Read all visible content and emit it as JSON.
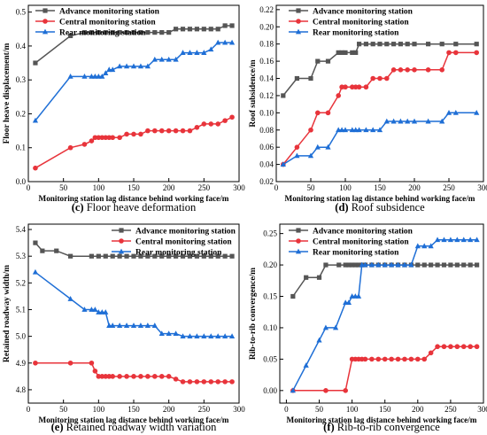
{
  "legend": {
    "advance": "Advance monitoring station",
    "central": "Central  monitoring station",
    "rear": "Rear monitoring station"
  },
  "colors": {
    "advance": "#555555",
    "central": "#e8343b",
    "rear": "#1f6fd6"
  },
  "chart_data": [
    {
      "id": "c",
      "type": "line",
      "caption_letter": "(c)",
      "caption_text": " Floor heave deformation",
      "xlabel": "Monitoring station lag distance behind working face/m",
      "ylabel": "Floor heave displacement/m",
      "xlim": [
        0,
        300
      ],
      "ylim": [
        0.0,
        0.52
      ],
      "xticks": [
        "0",
        "50",
        "100",
        "150",
        "200",
        "250",
        "300"
      ],
      "yticks": [
        "0.0",
        "0.1",
        "0.2",
        "0.3",
        "0.4",
        "0.5"
      ],
      "legend_position": "top-left",
      "series": [
        {
          "key": "advance",
          "x": [
            10,
            60,
            80,
            90,
            100,
            110,
            120,
            130,
            140,
            150,
            160,
            170,
            180,
            190,
            200,
            210,
            220,
            230,
            240,
            250,
            260,
            270,
            280,
            290
          ],
          "y": [
            0.35,
            0.43,
            0.44,
            0.44,
            0.44,
            0.44,
            0.44,
            0.44,
            0.44,
            0.44,
            0.44,
            0.44,
            0.44,
            0.44,
            0.44,
            0.45,
            0.45,
            0.45,
            0.45,
            0.45,
            0.45,
            0.45,
            0.46,
            0.46
          ]
        },
        {
          "key": "central",
          "x": [
            10,
            60,
            80,
            90,
            95,
            100,
            105,
            110,
            115,
            120,
            130,
            140,
            150,
            160,
            170,
            180,
            190,
            200,
            210,
            220,
            230,
            240,
            250,
            260,
            270,
            280,
            290
          ],
          "y": [
            0.04,
            0.1,
            0.11,
            0.12,
            0.13,
            0.13,
            0.13,
            0.13,
            0.13,
            0.13,
            0.13,
            0.14,
            0.14,
            0.14,
            0.15,
            0.15,
            0.15,
            0.15,
            0.15,
            0.15,
            0.15,
            0.16,
            0.17,
            0.17,
            0.17,
            0.18,
            0.19
          ]
        },
        {
          "key": "rear",
          "x": [
            10,
            60,
            80,
            90,
            95,
            100,
            105,
            110,
            115,
            120,
            130,
            140,
            150,
            160,
            170,
            180,
            190,
            200,
            210,
            220,
            230,
            240,
            250,
            260,
            270,
            280,
            290
          ],
          "y": [
            0.18,
            0.31,
            0.31,
            0.31,
            0.31,
            0.31,
            0.31,
            0.32,
            0.33,
            0.33,
            0.34,
            0.34,
            0.34,
            0.34,
            0.34,
            0.36,
            0.36,
            0.36,
            0.36,
            0.38,
            0.38,
            0.38,
            0.38,
            0.39,
            0.41,
            0.41,
            0.41
          ]
        }
      ]
    },
    {
      "id": "d",
      "type": "line",
      "caption_letter": "(d)",
      "caption_text": " Roof subsidence",
      "xlabel": "Monitoring station lag distance behind working face/m",
      "ylabel": "Roof subsidence/m",
      "xlim": [
        0,
        300
      ],
      "ylim": [
        0.02,
        0.225
      ],
      "xticks": [
        "0",
        "50",
        "100",
        "150",
        "200",
        "250",
        "300"
      ],
      "yticks": [
        "0.02",
        "0.04",
        "0.06",
        "0.08",
        "0.10",
        "0.12",
        "0.14",
        "0.16",
        "0.18",
        "0.20",
        "0.22"
      ],
      "legend_position": "top-left",
      "series": [
        {
          "key": "advance",
          "x": [
            10,
            30,
            50,
            60,
            75,
            90,
            95,
            100,
            110,
            115,
            120,
            130,
            140,
            150,
            160,
            170,
            180,
            190,
            200,
            220,
            240,
            260,
            290
          ],
          "y": [
            0.12,
            0.14,
            0.14,
            0.16,
            0.16,
            0.17,
            0.17,
            0.17,
            0.17,
            0.17,
            0.18,
            0.18,
            0.18,
            0.18,
            0.18,
            0.18,
            0.18,
            0.18,
            0.18,
            0.18,
            0.18,
            0.18,
            0.18
          ]
        },
        {
          "key": "central",
          "x": [
            10,
            30,
            50,
            60,
            75,
            90,
            95,
            100,
            110,
            115,
            120,
            130,
            140,
            150,
            160,
            170,
            180,
            190,
            200,
            220,
            240,
            250,
            260,
            290
          ],
          "y": [
            0.04,
            0.06,
            0.08,
            0.1,
            0.1,
            0.12,
            0.13,
            0.13,
            0.13,
            0.13,
            0.13,
            0.13,
            0.14,
            0.14,
            0.14,
            0.15,
            0.15,
            0.15,
            0.15,
            0.15,
            0.15,
            0.17,
            0.17,
            0.17
          ]
        },
        {
          "key": "rear",
          "x": [
            10,
            30,
            50,
            60,
            75,
            90,
            95,
            100,
            110,
            115,
            120,
            130,
            140,
            150,
            160,
            170,
            180,
            190,
            200,
            220,
            240,
            250,
            260,
            290
          ],
          "y": [
            0.04,
            0.05,
            0.05,
            0.06,
            0.06,
            0.08,
            0.08,
            0.08,
            0.08,
            0.08,
            0.08,
            0.08,
            0.08,
            0.08,
            0.09,
            0.09,
            0.09,
            0.09,
            0.09,
            0.09,
            0.09,
            0.1,
            0.1,
            0.1
          ]
        }
      ]
    },
    {
      "id": "e",
      "type": "line",
      "caption_letter": "(e)",
      "caption_text": " Retained roadway width variation",
      "xlabel": "Monitoring station lag distance behind working face/m",
      "ylabel": "Retained roadway width/m",
      "xlim": [
        0,
        300
      ],
      "ylim": [
        4.75,
        5.42
      ],
      "xticks": [
        "0",
        "50",
        "100",
        "150",
        "200",
        "250",
        "300"
      ],
      "yticks": [
        "4.8",
        "4.9",
        "5.0",
        "5.1",
        "5.2",
        "5.3",
        "5.4"
      ],
      "legend_position": "top-right",
      "series": [
        {
          "key": "advance",
          "x": [
            10,
            20,
            40,
            60,
            90,
            100,
            110,
            120,
            130,
            140,
            150,
            160,
            170,
            180,
            190,
            200,
            210,
            220,
            230,
            240,
            250,
            260,
            270,
            280,
            290
          ],
          "y": [
            5.35,
            5.32,
            5.32,
            5.3,
            5.3,
            5.3,
            5.3,
            5.3,
            5.3,
            5.3,
            5.3,
            5.3,
            5.3,
            5.3,
            5.3,
            5.3,
            5.3,
            5.3,
            5.3,
            5.3,
            5.3,
            5.3,
            5.3,
            5.3,
            5.3
          ]
        },
        {
          "key": "central",
          "x": [
            10,
            60,
            90,
            95,
            100,
            105,
            110,
            115,
            120,
            130,
            140,
            150,
            160,
            170,
            180,
            190,
            200,
            210,
            220,
            230,
            240,
            250,
            260,
            270,
            280,
            290
          ],
          "y": [
            4.9,
            4.9,
            4.9,
            4.87,
            4.85,
            4.85,
            4.85,
            4.85,
            4.85,
            4.85,
            4.85,
            4.85,
            4.85,
            4.85,
            4.85,
            4.85,
            4.85,
            4.84,
            4.83,
            4.83,
            4.83,
            4.83,
            4.83,
            4.83,
            4.83,
            4.83
          ]
        },
        {
          "key": "rear",
          "x": [
            10,
            60,
            80,
            90,
            95,
            100,
            105,
            110,
            115,
            120,
            130,
            140,
            150,
            160,
            170,
            180,
            190,
            200,
            210,
            220,
            230,
            240,
            250,
            260,
            270,
            280,
            290
          ],
          "y": [
            5.24,
            5.14,
            5.1,
            5.1,
            5.1,
            5.09,
            5.09,
            5.09,
            5.04,
            5.04,
            5.04,
            5.04,
            5.04,
            5.04,
            5.04,
            5.04,
            5.01,
            5.01,
            5.01,
            5.0,
            5.0,
            5.0,
            5.0,
            5.0,
            5.0,
            5.0,
            5.0
          ]
        }
      ]
    },
    {
      "id": "f",
      "type": "line",
      "caption_letter": "(f)",
      "caption_text": " Rib-to-rib convergence",
      "xlabel": "Monitoring station lag distance behind working face/m",
      "ylabel": "Rib-to-rib convergence/m",
      "xlim": [
        -10,
        300
      ],
      "ylim": [
        -0.02,
        0.265
      ],
      "xticks": [
        "0",
        "50",
        "100",
        "150",
        "200",
        "250",
        "300"
      ],
      "yticks": [
        "0.00",
        "0.05",
        "0.10",
        "0.15",
        "0.20",
        "0.25"
      ],
      "legend_position": "top-left",
      "series": [
        {
          "key": "advance",
          "x": [
            10,
            30,
            50,
            60,
            80,
            90,
            95,
            100,
            105,
            110,
            115,
            120,
            130,
            140,
            150,
            160,
            170,
            180,
            190,
            200,
            210,
            220,
            230,
            240,
            250,
            260,
            270,
            280,
            290
          ],
          "y": [
            0.15,
            0.18,
            0.18,
            0.2,
            0.2,
            0.2,
            0.2,
            0.2,
            0.2,
            0.2,
            0.2,
            0.2,
            0.2,
            0.2,
            0.2,
            0.2,
            0.2,
            0.2,
            0.2,
            0.2,
            0.2,
            0.2,
            0.2,
            0.2,
            0.2,
            0.2,
            0.2,
            0.2,
            0.2
          ]
        },
        {
          "key": "central",
          "x": [
            10,
            60,
            90,
            100,
            105,
            110,
            115,
            120,
            130,
            140,
            150,
            160,
            170,
            180,
            190,
            200,
            210,
            220,
            230,
            240,
            250,
            260,
            270,
            280,
            290
          ],
          "y": [
            0.0,
            0.0,
            0.0,
            0.05,
            0.05,
            0.05,
            0.05,
            0.05,
            0.05,
            0.05,
            0.05,
            0.05,
            0.05,
            0.05,
            0.05,
            0.05,
            0.05,
            0.06,
            0.07,
            0.07,
            0.07,
            0.07,
            0.07,
            0.07,
            0.07
          ]
        },
        {
          "key": "rear",
          "x": [
            10,
            30,
            50,
            60,
            75,
            90,
            95,
            100,
            105,
            110,
            115,
            120,
            130,
            140,
            150,
            160,
            170,
            180,
            190,
            200,
            210,
            220,
            230,
            240,
            250,
            260,
            270,
            280,
            290
          ],
          "y": [
            0.0,
            0.04,
            0.08,
            0.1,
            0.1,
            0.14,
            0.14,
            0.15,
            0.15,
            0.15,
            0.2,
            0.2,
            0.2,
            0.2,
            0.2,
            0.2,
            0.2,
            0.2,
            0.2,
            0.23,
            0.23,
            0.23,
            0.24,
            0.24,
            0.24,
            0.24,
            0.24,
            0.24,
            0.24
          ]
        }
      ]
    }
  ]
}
